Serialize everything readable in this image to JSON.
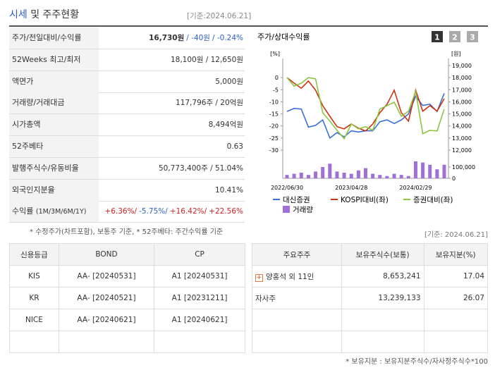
{
  "header": {
    "title_main": "시세",
    "title_rest": "및 주주현황",
    "date": "[기준:2024.06.21]"
  },
  "summary": {
    "rows": [
      {
        "label": "주가/전일대비/수익률",
        "values": [
          "16,730원",
          "/ -40원",
          "/ -0.24%"
        ]
      },
      {
        "label": "52Weeks 최고/최저",
        "values": [
          "18,100원 / 12,650원"
        ]
      },
      {
        "label": "액면가",
        "values": [
          "5,000원"
        ]
      },
      {
        "label": "거래량/거래대금",
        "values": [
          "117,796주 / 20억원"
        ]
      },
      {
        "label": "시가총액",
        "values": [
          "8,494억원"
        ]
      },
      {
        "label": "52주베타",
        "values": [
          "0.63"
        ]
      },
      {
        "label": "발행주식수/유동비율",
        "values": [
          "50,773,400주 / 51.04%"
        ]
      },
      {
        "label": "외국인지분율",
        "values": [
          "10.41%"
        ]
      },
      {
        "label": "수익률",
        "label_sub": "(1M/3M/6M/1Y)",
        "values": [
          "+6.36%/",
          "-5.75%/",
          "+16.42%/",
          "+22.56%"
        ]
      }
    ]
  },
  "summary_note": "* 수정주가(차트포함), 보통주 기준, * 52주베타: 주간수익률 기준",
  "right_date": "[기준: 2024.06.21]",
  "chart_data": {
    "type": "line",
    "title": "주가/상대수익률",
    "buttons": [
      "1",
      "2",
      "3"
    ],
    "y_unit": "[%]",
    "y2_unit": "[원]",
    "categories": [
      "2022/06/30",
      null,
      null,
      null,
      null,
      null,
      null,
      null,
      null,
      "2023/04/28",
      null,
      null,
      null,
      null,
      null,
      null,
      null,
      null,
      "2024/02/29",
      null,
      null,
      null,
      null
    ],
    "ylim": [
      -30,
      5
    ],
    "yticks": [
      0,
      -5,
      -10,
      -15,
      -20,
      -25,
      -30
    ],
    "y2lim": [
      12000,
      19000
    ],
    "y2ticks": [
      {
        "value": 19000,
        "label": "19,000"
      },
      {
        "value": 18000,
        "label": "18,000"
      },
      {
        "value": 17000,
        "label": "17,000"
      },
      {
        "value": 16000,
        "label": "16,000"
      },
      {
        "value": 15000,
        "label": "15,000"
      },
      {
        "value": 14000,
        "label": "14,000"
      },
      {
        "value": 13000,
        "label": "13,000"
      },
      {
        "value": 12000,
        "label": "12,000"
      }
    ],
    "vlim": [
      0,
      100000
    ],
    "vticks": [
      {
        "value": 100000,
        "label": "100,000"
      },
      0
    ],
    "series": [
      {
        "name": "대신증권",
        "color": "#3a6fd8",
        "axis": "y2",
        "values": [
          15200,
          15450,
          15400,
          13900,
          14050,
          14500,
          13000,
          13450,
          13100,
          13600,
          13500,
          13600,
          13600,
          14350,
          14500,
          14200,
          14500,
          15000,
          16450,
          15700,
          15800,
          15200,
          16700
        ]
      },
      {
        "name": "KOSPI대비(좌)",
        "color": "#cc3311",
        "values": [
          0,
          -2.3,
          -4.4,
          -1.4,
          -5.2,
          -11.6,
          -16,
          -20.3,
          -21.2,
          -19.2,
          -20.9,
          -22.1,
          -19.2,
          -14.5,
          -11,
          -5.2,
          -14.5,
          -18,
          -5.2,
          -13.9,
          -11.6,
          -13.9,
          -8.7
        ]
      },
      {
        "name": "증권대비(좌)",
        "color": "#8cc63f",
        "values": [
          0,
          -3.5,
          -2.3,
          0,
          -0.5,
          -14.5,
          -18,
          -21.8,
          -25.3,
          -19.2,
          -21.2,
          -20.3,
          -21.8,
          -13,
          -11.6,
          -10.2,
          -16,
          -13.9,
          -5.7,
          -23.2,
          -21.8,
          -22.1,
          -13
        ]
      }
    ],
    "volume": {
      "name": "거래량",
      "color": "#a070d8",
      "values": [
        30000,
        40000,
        50000,
        30000,
        60000,
        100000,
        130000,
        60000,
        50000,
        40000,
        70000,
        90000,
        40000,
        30000,
        20000,
        40000,
        30000,
        20000,
        150000,
        140000,
        120000,
        80000,
        120000
      ]
    }
  },
  "credit": {
    "headers": [
      "신용등급",
      "BOND",
      "CP"
    ],
    "rows": [
      [
        "KIS",
        "AA- [20240531]",
        "A1 [20240531]"
      ],
      [
        "KR",
        "AA- [20240521]",
        "A1 [20231211]"
      ],
      [
        "NICE",
        "AA- [20240621]",
        "A1 [20240621]"
      ]
    ]
  },
  "holders": {
    "headers": [
      "주요주주",
      "보유주식수(보통)",
      "보유지분(%)"
    ],
    "rows": [
      [
        "양홍석 외 11인",
        "8,653,241",
        "17.04"
      ],
      [
        "자사주",
        "13,239,133",
        "26.07"
      ]
    ]
  },
  "holders_note": "* 보유지분 : 보유지분주식수/자사정주식수*100"
}
